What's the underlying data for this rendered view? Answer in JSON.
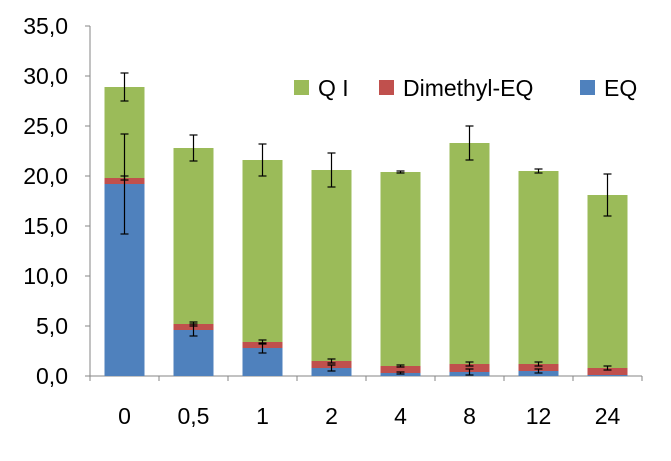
{
  "chart_data": {
    "type": "bar",
    "stacked": true,
    "categories": [
      "0",
      "0,5",
      "1",
      "2",
      "4",
      "8",
      "12",
      "24"
    ],
    "series": [
      {
        "name": "EQ",
        "color": "#4f81bd",
        "values": [
          19.2,
          4.6,
          2.8,
          0.8,
          0.3,
          0.4,
          0.5,
          0.1
        ],
        "errors": [
          5.0,
          0.6,
          0.5,
          0.3,
          0.1,
          0.3,
          0.2,
          0.0
        ]
      },
      {
        "name": "Dimethyl-EQ",
        "color": "#c0504d",
        "values": [
          0.6,
          0.6,
          0.6,
          0.7,
          0.7,
          0.8,
          0.7,
          0.7
        ],
        "errors": [
          0.2,
          0.2,
          0.2,
          0.2,
          0.1,
          0.2,
          0.2,
          0.2
        ]
      },
      {
        "name": "Q I",
        "color": "#9bbb59",
        "values": [
          9.1,
          17.6,
          18.2,
          19.1,
          19.4,
          22.1,
          19.3,
          17.3
        ],
        "errors": [
          1.4,
          1.3,
          1.6,
          1.7,
          0.1,
          1.7,
          0.2,
          2.1
        ]
      }
    ],
    "title": "",
    "xlabel": "",
    "ylabel": "",
    "ylim": [
      0,
      35
    ],
    "yticks": [
      "0,0",
      "5,0",
      "10,0",
      "15,0",
      "20,0",
      "25,0",
      "30,0",
      "35,0"
    ],
    "legend_order": [
      "Q I",
      "Dimethyl-EQ",
      "EQ"
    ],
    "legend_position": "top-right",
    "grid": false
  }
}
